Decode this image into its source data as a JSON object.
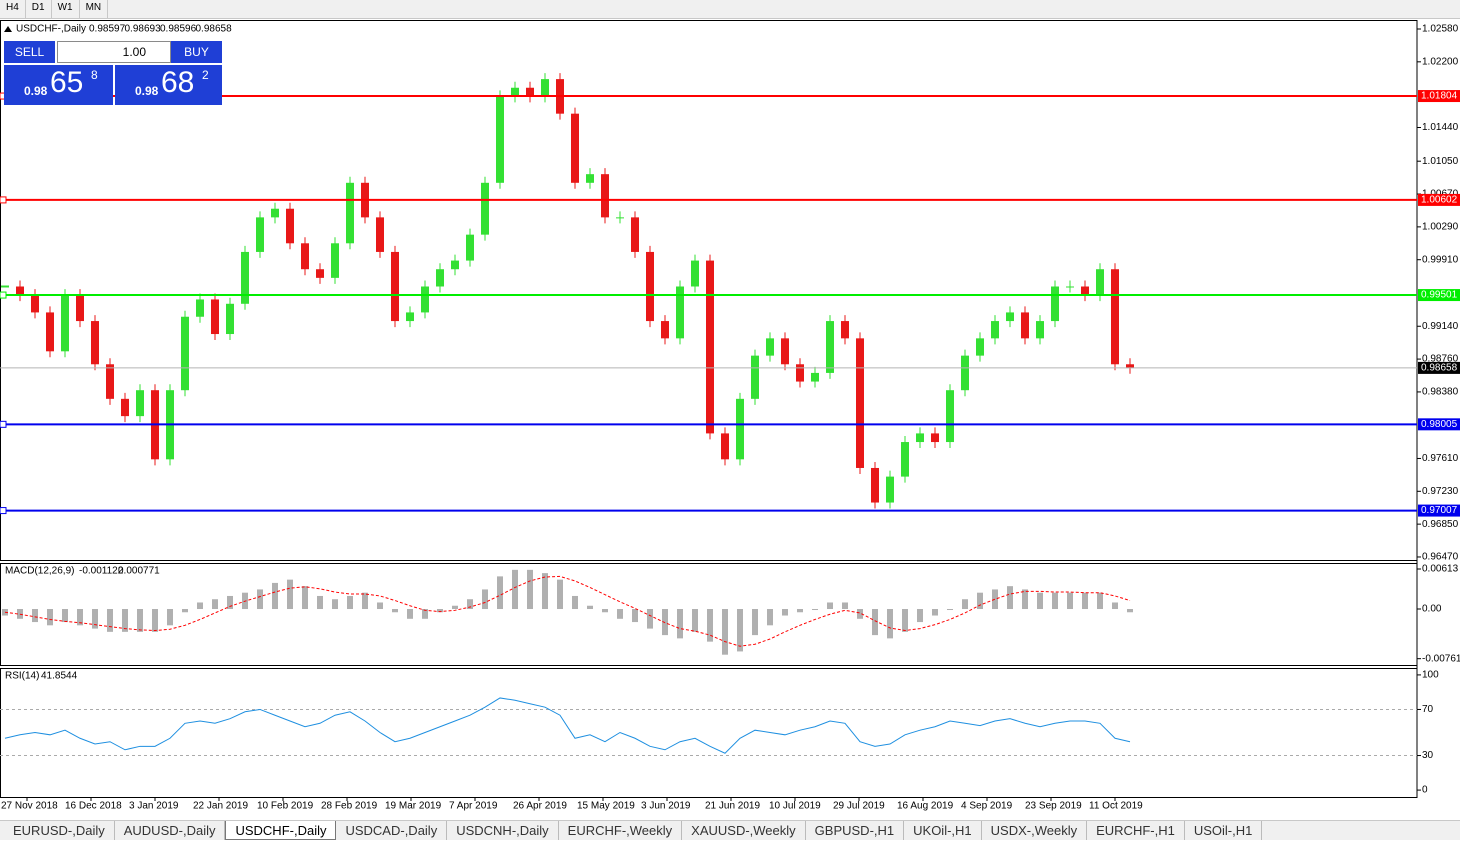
{
  "toolbar": [
    "H4",
    "D1",
    "W1",
    "MN"
  ],
  "header": {
    "symbol": "USDCHF-,Daily",
    "ohlc": [
      0.98597,
      0.98693,
      0.98596,
      0.98658
    ]
  },
  "trade_panel": {
    "sell": "SELL",
    "lot": "1.00",
    "buy": "BUY",
    "bid": {
      "prefix": "0.98",
      "big": "65",
      "small": "8"
    },
    "ask": {
      "prefix": "0.98",
      "big": "68",
      "small": "2"
    }
  },
  "chart": {
    "ylim": [
      0.96435,
      1.02684
    ],
    "yticks": [
      {
        "value": 1.0258,
        "label": "1.02580"
      },
      {
        "value": 1.022,
        "label": "1.02200"
      },
      {
        "value": 1.0144,
        "label": "1.01440"
      },
      {
        "value": 1.0105,
        "label": "1.01050"
      },
      {
        "value": 1.0067,
        "label": "1.00670"
      },
      {
        "value": 1.0029,
        "label": "1.00290"
      },
      {
        "value": 0.9991,
        "label": "0.99910"
      },
      {
        "value": 0.9914,
        "label": "0.99140"
      },
      {
        "value": 0.9876,
        "label": "0.98760"
      },
      {
        "value": 0.9838,
        "label": "0.98380"
      },
      {
        "value": 0.9761,
        "label": "0.97610"
      },
      {
        "value": 0.9723,
        "label": "0.97230"
      },
      {
        "value": 0.9685,
        "label": "0.96850"
      },
      {
        "value": 0.9647,
        "label": "0.96470"
      }
    ],
    "up_color": "#33e033",
    "down_color": "#e81818",
    "close": [
      0.996,
      0.995,
      0.993,
      0.9885,
      0.995,
      0.992,
      0.987,
      0.983,
      0.981,
      0.984,
      0.976,
      0.984,
      0.9925,
      0.9945,
      0.9905,
      0.994,
      1.0,
      1.004,
      1.005,
      1.001,
      0.998,
      0.997,
      1.001,
      1.008,
      1.004,
      1.0,
      0.992,
      0.993,
      0.996,
      0.998,
      0.999,
      1.002,
      1.008,
      1.018,
      1.019,
      1.018,
      1.02,
      1.016,
      1.008,
      1.009,
      1.004,
      1.004,
      1.0,
      0.992,
      0.99,
      0.996,
      0.999,
      0.979,
      0.976,
      0.983,
      0.988,
      0.99,
      0.987,
      0.985,
      0.986,
      0.992,
      0.99,
      0.975,
      0.971,
      0.974,
      0.978,
      0.979,
      0.978,
      0.984,
      0.988,
      0.99,
      0.992,
      0.993,
      0.99,
      0.992,
      0.996,
      0.996,
      0.995,
      0.998,
      0.987,
      0.9866
    ],
    "current_price": 0.98658,
    "levels": [
      {
        "value": 1.01804,
        "color": "#ff0000"
      },
      {
        "value": 1.00602,
        "color": "#ff0000"
      },
      {
        "value": 0.99501,
        "color": "#00ee00"
      },
      {
        "value": 0.98005,
        "color": "#0000ee"
      },
      {
        "value": 0.97007,
        "color": "#0000ee"
      }
    ],
    "dates": [
      "27 Nov 2018",
      "16 Dec 2018",
      "3 Jan 2019",
      "22 Jan 2019",
      "10 Feb 2019",
      "28 Feb 2019",
      "19 Mar 2019",
      "7 Apr 2019",
      "26 Apr 2019",
      "15 May 2019",
      "3 Jun 2019",
      "21 Jun 2019",
      "10 Jul 2019",
      "29 Jul 2019",
      "16 Aug 2019",
      "4 Sep 2019",
      "23 Sep 2019",
      "11 Oct 2019"
    ]
  },
  "macd": {
    "label": "MACD(12,26,9)",
    "main": -0.001122,
    "signal": 0.000771,
    "ylim": [
      -0.00858,
      0.00705
    ],
    "yticks": [
      0.00613,
      {
        "value": 0,
        "label": "0.00"
      },
      -0.007612
    ],
    "histogram": [
      -0.001,
      -0.0015,
      -0.002,
      -0.0025,
      -0.002,
      -0.0025,
      -0.003,
      -0.0035,
      -0.0035,
      -0.0035,
      -0.0035,
      -0.0025,
      -0.0005,
      0.001,
      0.0015,
      0.002,
      0.0025,
      0.003,
      0.004,
      0.0045,
      0.0035,
      0.002,
      0.0015,
      0.002,
      0.0025,
      0.001,
      -0.0005,
      -0.0015,
      -0.0015,
      -0.0005,
      0.0005,
      0.0015,
      0.003,
      0.005,
      0.006,
      0.006,
      0.0055,
      0.0045,
      0.002,
      0.0005,
      -0.0005,
      -0.0015,
      -0.002,
      -0.003,
      -0.004,
      -0.0045,
      -0.0035,
      -0.005,
      -0.007,
      -0.0065,
      -0.004,
      -0.0025,
      -0.001,
      -0.0005,
      0,
      0.001,
      0.001,
      -0.0015,
      -0.004,
      -0.0045,
      -0.0035,
      -0.002,
      -0.001,
      0,
      0.0015,
      0.0025,
      0.003,
      0.0035,
      0.003,
      0.0025,
      0.0025,
      0.0025,
      0.0025,
      0.0025,
      0.001,
      -0.0005
    ],
    "signal_line": [
      -0.0005,
      -0.0008,
      -0.0012,
      -0.0016,
      -0.0019,
      -0.0021,
      -0.0024,
      -0.0027,
      -0.003,
      -0.0032,
      -0.0033,
      -0.0031,
      -0.0025,
      -0.0016,
      -0.0006,
      0.0004,
      0.0012,
      0.0019,
      0.0026,
      0.0032,
      0.0034,
      0.0031,
      0.0026,
      0.0023,
      0.0023,
      0.002,
      0.0013,
      0.0005,
      -0.0002,
      -0.0004,
      -0.0002,
      0.0003,
      0.001,
      0.0021,
      0.0033,
      0.0043,
      0.0049,
      0.005,
      0.0043,
      0.0033,
      0.0022,
      0.0011,
      0.0001,
      -0.001,
      -0.0021,
      -0.003,
      -0.0034,
      -0.004,
      -0.005,
      -0.0057,
      -0.0054,
      -0.0046,
      -0.0035,
      -0.0025,
      -0.0016,
      -0.0008,
      -0.0002,
      -0.0006,
      -0.0018,
      -0.0029,
      -0.0033,
      -0.003,
      -0.0024,
      -0.0016,
      -0.0006,
      0.0006,
      0.0015,
      0.0023,
      0.0027,
      0.0027,
      0.0026,
      0.0026,
      0.0025,
      0.0025,
      0.002,
      0.0013
    ],
    "histogram_color": "#b0b0b0",
    "signal_color": "#ff0000"
  },
  "rsi": {
    "label": "RSI(14)",
    "value": 41.8544,
    "ylim": [
      -6,
      106
    ],
    "yticks": [
      100,
      70,
      30,
      0
    ],
    "levels": [
      70,
      30
    ],
    "color": "#1e8fe0",
    "values": [
      45,
      48,
      50,
      48,
      52,
      45,
      40,
      42,
      35,
      38,
      38,
      45,
      58,
      60,
      58,
      62,
      68,
      70,
      65,
      60,
      55,
      58,
      65,
      68,
      60,
      50,
      42,
      45,
      50,
      55,
      60,
      65,
      72,
      80,
      78,
      75,
      72,
      65,
      45,
      48,
      42,
      50,
      45,
      38,
      35,
      42,
      45,
      38,
      32,
      45,
      52,
      50,
      48,
      52,
      55,
      60,
      58,
      42,
      38,
      40,
      48,
      52,
      55,
      60,
      58,
      56,
      60,
      62,
      58,
      55,
      58,
      60,
      60,
      58,
      45,
      42
    ]
  },
  "tabs": {
    "items": [
      "EURUSD-,Daily",
      "AUDUSD-,Daily",
      "USDCHF-,Daily",
      "USDCAD-,Daily",
      "USDCNH-,Daily",
      "EURCHF-,Weekly",
      "XAUUSD-,Weekly",
      "GBPUSD-,H1",
      "UKOil-,H1",
      "USDX-,Weekly",
      "EURCHF-,H1",
      "USOil-,H1"
    ],
    "active": 2
  }
}
